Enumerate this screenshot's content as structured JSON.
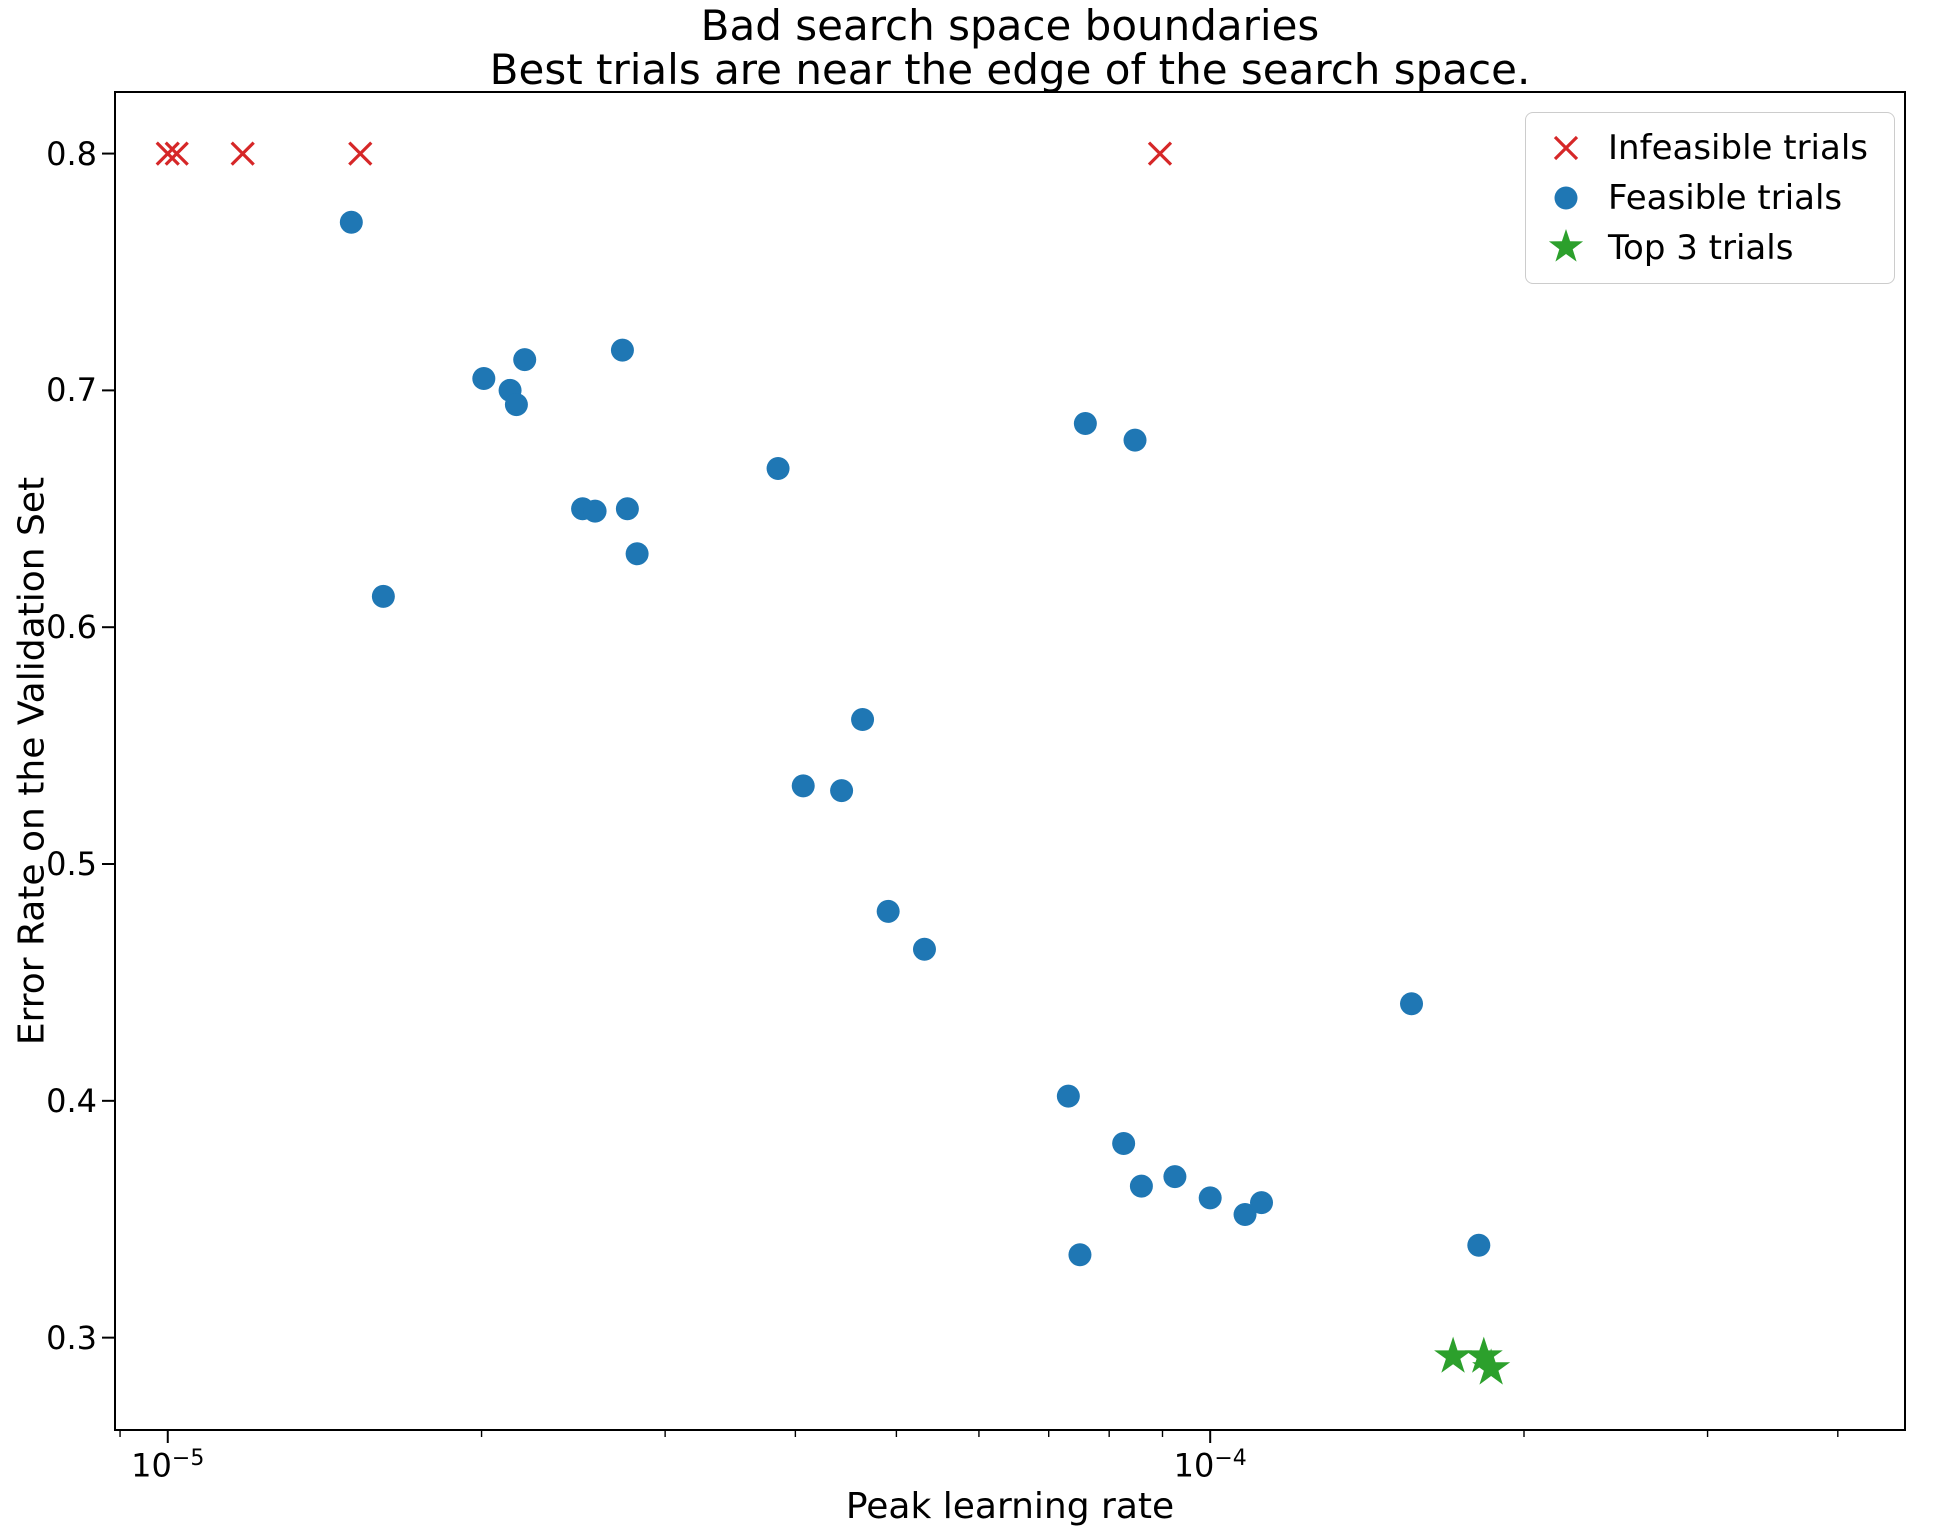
{
  "chart_data": {
    "type": "scatter",
    "title_line1": "Bad search space boundaries",
    "title_line2": "Best trials are near the edge of the search space.",
    "title": "Bad search space boundaries\nBest trials are near the edge of the search space.",
    "xlabel": "Peak learning rate",
    "ylabel": "Error Rate on the Validation Set",
    "x_scale": "log",
    "y_scale": "linear",
    "xlim": [
      8.9e-06,
      0.000464
    ],
    "ylim": [
      0.261,
      0.826
    ],
    "yticks": [
      0.3,
      0.4,
      0.5,
      0.6,
      0.7,
      0.8
    ],
    "xticks": [
      {
        "value": 1e-05,
        "base": "10",
        "exp": "−5"
      },
      {
        "value": 0.0001,
        "base": "10",
        "exp": "−4"
      }
    ],
    "grid": false,
    "legend_position": "upper right",
    "series": [
      {
        "name": "Infeasible trials",
        "marker": "x",
        "color": "#d62728",
        "points": [
          [
            1e-05,
            0.8
          ],
          [
            1.02e-05,
            0.8
          ],
          [
            1.18e-05,
            0.8
          ],
          [
            1.53e-05,
            0.8
          ],
          [
            8.95e-05,
            0.8
          ]
        ]
      },
      {
        "name": "Feasible trials",
        "marker": "circle",
        "color": "#1f77b4",
        "points": [
          [
            1.5e-05,
            0.771
          ],
          [
            2.01e-05,
            0.705
          ],
          [
            2.13e-05,
            0.7
          ],
          [
            2.16e-05,
            0.694
          ],
          [
            2.2e-05,
            0.713
          ],
          [
            2.73e-05,
            0.717
          ],
          [
            2.5e-05,
            0.65
          ],
          [
            2.57e-05,
            0.649
          ],
          [
            2.76e-05,
            0.65
          ],
          [
            2.82e-05,
            0.631
          ],
          [
            1.61e-05,
            0.613
          ],
          [
            3.85e-05,
            0.667
          ],
          [
            4.07e-05,
            0.533
          ],
          [
            4.43e-05,
            0.531
          ],
          [
            4.64e-05,
            0.561
          ],
          [
            4.91e-05,
            0.48
          ],
          [
            5.32e-05,
            0.464
          ],
          [
            7.59e-05,
            0.686
          ],
          [
            8.47e-05,
            0.679
          ],
          [
            7.31e-05,
            0.402
          ],
          [
            8.26e-05,
            0.382
          ],
          [
            8.59e-05,
            0.364
          ],
          [
            9.25e-05,
            0.368
          ],
          [
            0.0001,
            0.359
          ],
          [
            0.000108,
            0.352
          ],
          [
            0.000112,
            0.357
          ],
          [
            7.5e-05,
            0.335
          ],
          [
            0.000156,
            0.441
          ],
          [
            0.000181,
            0.339
          ]
        ]
      },
      {
        "name": "Top 3 trials",
        "marker": "star",
        "color": "#2ca02c",
        "points": [
          [
            0.000171,
            0.292
          ],
          [
            0.000183,
            0.292
          ],
          [
            0.000186,
            0.287
          ]
        ]
      }
    ]
  }
}
